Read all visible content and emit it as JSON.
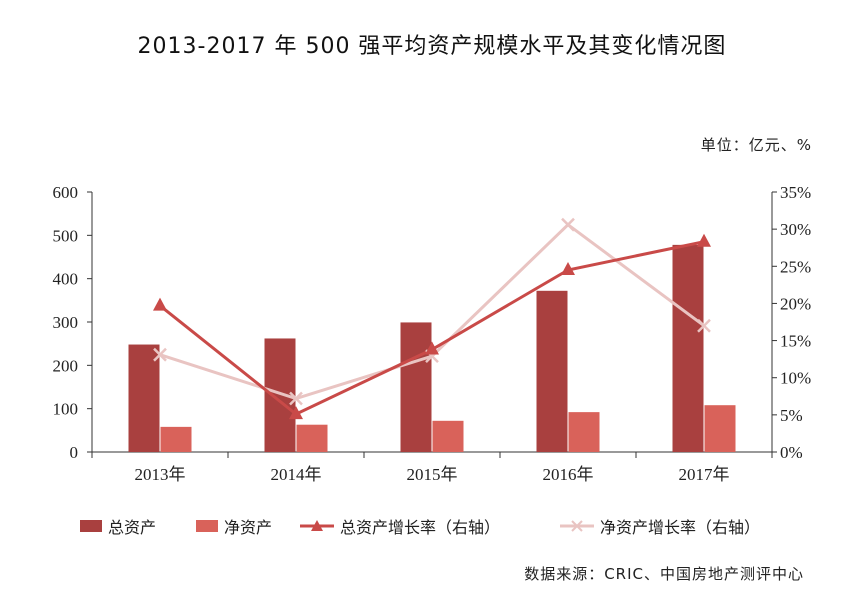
{
  "title": "2013-2017 年 500 强平均资产规模水平及其变化情况图",
  "unit_label": "单位：亿元、%",
  "source": "数据来源：CRIC、中国房地产测评中心",
  "colors": {
    "total_assets": "#a9403f",
    "net_assets": "#d9625a",
    "total_growth": "#c94a48",
    "net_growth": "#e9c4c2",
    "axis": "#333333"
  },
  "chart_data": {
    "type": "bar",
    "categories": [
      "2013年",
      "2014年",
      "2015年",
      "2016年",
      "2017年"
    ],
    "series": [
      {
        "name": "总资产",
        "type": "bar",
        "axis": "left",
        "values": [
          248,
          262,
          299,
          372,
          478
        ]
      },
      {
        "name": "净资产",
        "type": "bar",
        "axis": "left",
        "values": [
          58,
          63,
          72,
          92,
          108
        ]
      },
      {
        "name": "总资产增长率（右轴）",
        "type": "line",
        "axis": "right",
        "marker": "triangle",
        "values": [
          19.7,
          5.1,
          13.8,
          24.5,
          28.3
        ]
      },
      {
        "name": "净资产增长率（右轴）",
        "type": "line",
        "axis": "right",
        "marker": "x",
        "values": [
          13.1,
          7.2,
          12.9,
          30.6,
          17.0
        ]
      }
    ],
    "ylim": [
      0,
      600
    ],
    "y_ticks": [
      "0",
      "100",
      "200",
      "300",
      "400",
      "500",
      "600"
    ],
    "y2lim": [
      0,
      35
    ],
    "y2_ticks": [
      "0%",
      "5%",
      "10%",
      "15%",
      "20%",
      "25%",
      "30%",
      "35%"
    ],
    "legend_position": "bottom",
    "grid": false
  }
}
